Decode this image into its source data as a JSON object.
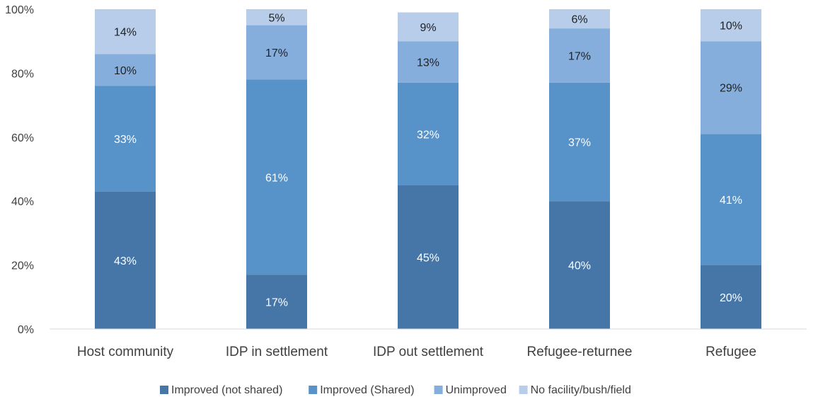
{
  "chart_data": {
    "type": "bar",
    "stacked": true,
    "categories": [
      "Host community",
      "IDP in settlement",
      "IDP out settlement",
      "Refugee-returnee",
      "Refugee"
    ],
    "series": [
      {
        "name": "Improved (not shared)",
        "values": [
          43,
          17,
          45,
          40,
          20
        ],
        "labels": [
          "43%",
          "17%",
          "45%",
          "40%",
          "20%"
        ],
        "color": "#4576a7",
        "label_color": "#ffffff"
      },
      {
        "name": "Improved (Shared)",
        "values": [
          33,
          61,
          32,
          37,
          41
        ],
        "labels": [
          "33%",
          "61%",
          "32%",
          "37%",
          "41%"
        ],
        "color": "#5792c8",
        "label_color": "#ffffff"
      },
      {
        "name": "Unimproved",
        "values": [
          10,
          17,
          13,
          17,
          29
        ],
        "labels": [
          "10%",
          "17%",
          "13%",
          "17%",
          "29%"
        ],
        "color": "#86aedc",
        "label_color": "#222222"
      },
      {
        "name": "No facility/bush/field",
        "values": [
          14,
          5,
          9,
          6,
          10
        ],
        "labels": [
          "14%",
          "5%",
          "9%",
          "6%",
          "10%"
        ],
        "color": "#b8cde9",
        "label_color": "#222222"
      }
    ],
    "ylim": [
      0,
      100
    ],
    "yticks": [
      0,
      20,
      40,
      60,
      80,
      100
    ],
    "ytick_labels": [
      "0%",
      "20%",
      "40%",
      "60%",
      "80%",
      "100%"
    ],
    "grid": false,
    "legend": "bottom",
    "title": "",
    "xlabel": "",
    "ylabel": ""
  },
  "colors": {
    "axis_line": "#d9d9d9",
    "text": "#404040"
  }
}
